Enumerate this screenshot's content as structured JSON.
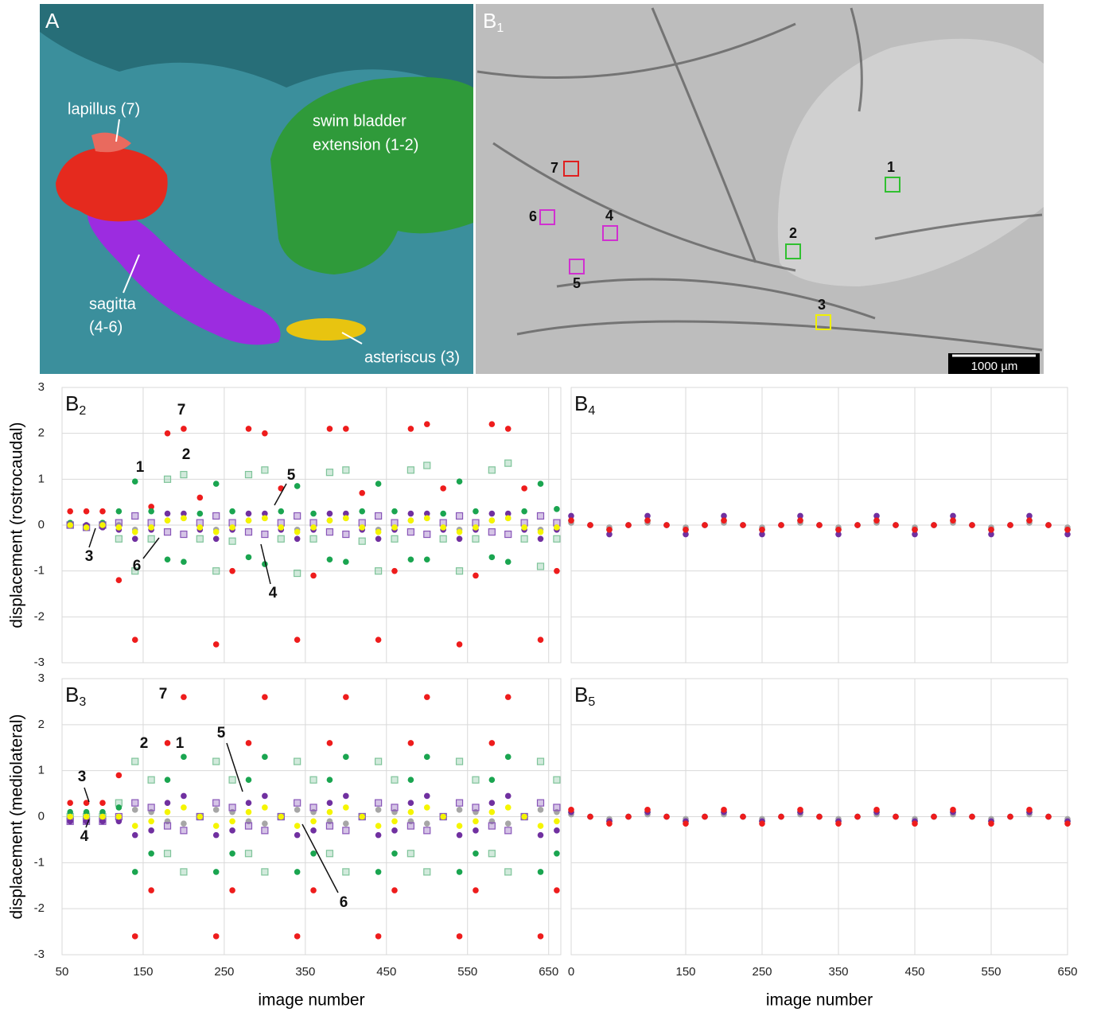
{
  "panel_a": {
    "label": "A",
    "annotations": [
      "lapillus (7)",
      "swim bladder",
      "extension (1-2)",
      "sagitta",
      "(4-6)",
      "asteriscus (3)"
    ]
  },
  "panel_b1": {
    "label": {
      "letter": "B",
      "sub": "1"
    },
    "markers": [
      "1",
      "2",
      "3",
      "4",
      "5",
      "6",
      "7"
    ],
    "scale_bar": "1000 µm"
  },
  "chart_data": [
    {
      "type": "scatter",
      "panel": {
        "letter": "B",
        "sub": "2"
      },
      "ylabel": "displacement (rostrocaudal)",
      "xlim": [
        50,
        665
      ],
      "xticks": [
        50,
        150,
        250,
        350,
        450,
        550,
        650
      ],
      "xtick_labels": false,
      "ylim": [
        -3,
        3
      ],
      "yticks": [
        -3,
        -2,
        -1,
        0,
        1,
        2,
        3
      ],
      "grid": true,
      "annotations": [
        "7",
        "1",
        "2",
        "5",
        "3",
        "6",
        "4"
      ],
      "x": [
        60,
        80,
        100,
        120,
        140,
        160,
        180,
        200,
        220,
        240,
        260,
        280,
        300,
        320,
        340,
        360,
        380,
        400,
        420,
        440,
        460,
        480,
        500,
        520,
        540,
        560,
        580,
        600,
        620,
        640,
        660
      ],
      "series": [
        {
          "name": "2",
          "color": "#7fc49a",
          "marker": "square",
          "values": [
            0,
            -0.05,
            0,
            -0.3,
            -1.0,
            -0.3,
            1.0,
            1.1,
            -0.3,
            -1.0,
            -0.35,
            1.1,
            1.2,
            -0.3,
            -1.05,
            -0.3,
            1.15,
            1.2,
            -0.35,
            -1.0,
            -0.3,
            1.2,
            1.3,
            -0.3,
            -1.0,
            -0.3,
            1.2,
            1.35,
            -0.3,
            -0.9,
            -0.3
          ]
        },
        {
          "name": "7",
          "color": "#ee1c1c",
          "marker": "circle",
          "values": [
            0.3,
            0.3,
            0.3,
            -1.2,
            -2.5,
            0.4,
            2.0,
            2.1,
            0.6,
            -2.6,
            -1.0,
            2.1,
            2.0,
            0.8,
            -2.5,
            -1.1,
            2.1,
            2.1,
            0.7,
            -2.5,
            -1.0,
            2.1,
            2.2,
            0.8,
            -2.6,
            -1.1,
            2.2,
            2.1,
            0.8,
            -2.5,
            -1.0
          ]
        },
        {
          "name": "1",
          "color": "#1aa550",
          "marker": "circle",
          "values": [
            0.05,
            0,
            0.05,
            0.3,
            0.95,
            0.3,
            -0.75,
            -0.8,
            0.25,
            0.9,
            0.3,
            -0.7,
            -0.85,
            0.3,
            0.85,
            0.25,
            -0.75,
            -0.8,
            0.3,
            0.9,
            0.3,
            -0.75,
            -0.75,
            0.25,
            0.95,
            0.3,
            -0.7,
            -0.8,
            0.3,
            0.9,
            0.35
          ]
        },
        {
          "name": "5",
          "color": "#a6a6a6",
          "marker": "circle",
          "values": [
            0,
            0,
            0,
            0,
            -0.1,
            -0.05,
            0.1,
            0.15,
            -0.05,
            -0.1,
            -0.05,
            0.1,
            0.15,
            -0.05,
            -0.1,
            -0.05,
            0.1,
            0.15,
            -0.05,
            -0.1,
            -0.05,
            0.1,
            0.15,
            -0.05,
            -0.1,
            -0.05,
            0.1,
            0.15,
            -0.05,
            -0.1,
            -0.05
          ]
        },
        {
          "name": "6",
          "color": "#8855b8",
          "marker": "square",
          "values": [
            0,
            -0.05,
            0,
            0.05,
            0.2,
            0.05,
            -0.15,
            -0.2,
            0.05,
            0.2,
            0.05,
            -0.15,
            -0.2,
            0.05,
            0.2,
            0.05,
            -0.15,
            -0.2,
            0.05,
            0.2,
            0.05,
            -0.15,
            -0.2,
            0.05,
            0.2,
            0.05,
            -0.15,
            -0.2,
            0.05,
            0.2,
            0.05
          ]
        },
        {
          "name": "4",
          "color": "#7030a0",
          "marker": "circle",
          "values": [
            0,
            0,
            -0.05,
            -0.1,
            -0.3,
            -0.1,
            0.25,
            0.25,
            -0.1,
            -0.3,
            -0.1,
            0.25,
            0.25,
            -0.1,
            -0.3,
            -0.1,
            0.25,
            0.25,
            -0.1,
            -0.3,
            -0.1,
            0.25,
            0.25,
            -0.1,
            -0.3,
            -0.1,
            0.25,
            0.25,
            -0.1,
            -0.3,
            -0.1
          ]
        },
        {
          "name": "3",
          "color": "#f5f500",
          "marker": "circle",
          "values": [
            0,
            -0.05,
            0,
            -0.05,
            -0.15,
            -0.05,
            0.1,
            0.15,
            -0.05,
            -0.15,
            -0.05,
            0.1,
            0.15,
            -0.05,
            -0.15,
            -0.05,
            0.1,
            0.15,
            -0.05,
            -0.15,
            -0.05,
            0.1,
            0.15,
            -0.05,
            -0.15,
            -0.05,
            0.1,
            0.15,
            -0.05,
            -0.15,
            -0.05
          ]
        }
      ]
    },
    {
      "type": "scatter",
      "panel": {
        "letter": "B",
        "sub": "3"
      },
      "ylabel": "displacement (mediolateral)",
      "xlabel": "image number",
      "xlim": [
        50,
        665
      ],
      "xticks": [
        50,
        150,
        250,
        350,
        450,
        550,
        650
      ],
      "ylim": [
        -3,
        3
      ],
      "yticks": [
        -3,
        -2,
        -1,
        0,
        1,
        2,
        3
      ],
      "grid": true,
      "annotations": [
        "7",
        "2",
        "1",
        "5",
        "3",
        "4",
        "6"
      ],
      "x": [
        60,
        80,
        100,
        120,
        140,
        160,
        180,
        200,
        220,
        240,
        260,
        280,
        300,
        320,
        340,
        360,
        380,
        400,
        420,
        440,
        460,
        480,
        500,
        520,
        540,
        560,
        580,
        600,
        620,
        640,
        660
      ],
      "series": [
        {
          "name": "2",
          "color": "#7fc49a",
          "marker": "square",
          "values": [
            0,
            0,
            0,
            0.3,
            1.2,
            0.8,
            -0.8,
            -1.2,
            0,
            1.2,
            0.8,
            -0.8,
            -1.2,
            0,
            1.2,
            0.8,
            -0.8,
            -1.2,
            0,
            1.2,
            0.8,
            -0.8,
            -1.2,
            0,
            1.2,
            0.8,
            -0.8,
            -1.2,
            0,
            1.2,
            0.8
          ]
        },
        {
          "name": "7",
          "color": "#ee1c1c",
          "marker": "circle",
          "values": [
            0.3,
            0.3,
            0.3,
            0.9,
            -2.6,
            -1.6,
            1.6,
            2.6,
            0,
            -2.6,
            -1.6,
            1.6,
            2.6,
            0,
            -2.6,
            -1.6,
            1.6,
            2.6,
            0,
            -2.6,
            -1.6,
            1.6,
            2.6,
            0,
            -2.6,
            -1.6,
            1.6,
            2.6,
            0,
            -2.6,
            -1.6
          ]
        },
        {
          "name": "1",
          "color": "#1aa550",
          "marker": "circle",
          "values": [
            0.1,
            0.1,
            0.1,
            0.2,
            -1.2,
            -0.8,
            0.8,
            1.3,
            0,
            -1.2,
            -0.8,
            0.8,
            1.3,
            0,
            -1.2,
            -0.8,
            0.8,
            1.3,
            0,
            -1.2,
            -0.8,
            0.8,
            1.3,
            0,
            -1.2,
            -0.8,
            0.8,
            1.3,
            0,
            -1.2,
            -0.8
          ]
        },
        {
          "name": "5",
          "color": "#a6a6a6",
          "marker": "circle",
          "values": [
            0,
            0,
            0,
            0,
            0.15,
            0.1,
            -0.1,
            -0.15,
            0,
            0.15,
            0.1,
            -0.1,
            -0.15,
            0,
            0.15,
            0.1,
            -0.1,
            -0.15,
            0,
            0.15,
            0.1,
            -0.1,
            -0.15,
            0,
            0.15,
            0.1,
            -0.1,
            -0.15,
            0,
            0.15,
            0.1
          ]
        },
        {
          "name": "6",
          "color": "#8855b8",
          "marker": "square",
          "values": [
            -0.1,
            -0.1,
            -0.1,
            0,
            0.3,
            0.2,
            -0.2,
            -0.3,
            0,
            0.3,
            0.2,
            -0.2,
            -0.3,
            0,
            0.3,
            0.2,
            -0.2,
            -0.3,
            0,
            0.3,
            0.2,
            -0.2,
            -0.3,
            0,
            0.3,
            0.2,
            -0.2,
            -0.3,
            0,
            0.3,
            0.2
          ]
        },
        {
          "name": "4",
          "color": "#7030a0",
          "marker": "circle",
          "values": [
            -0.1,
            -0.1,
            -0.1,
            -0.1,
            -0.4,
            -0.3,
            0.3,
            0.45,
            0,
            -0.4,
            -0.3,
            0.3,
            0.45,
            0,
            -0.4,
            -0.3,
            0.3,
            0.45,
            0,
            -0.4,
            -0.3,
            0.3,
            0.45,
            0,
            -0.4,
            -0.3,
            0.3,
            0.45,
            0,
            -0.4,
            -0.3
          ]
        },
        {
          "name": "3",
          "color": "#f5f500",
          "marker": "circle",
          "values": [
            0,
            0,
            0,
            0,
            -0.2,
            -0.1,
            0.1,
            0.2,
            0,
            -0.2,
            -0.1,
            0.1,
            0.2,
            0,
            -0.2,
            -0.1,
            0.1,
            0.2,
            0,
            -0.2,
            -0.1,
            0.1,
            0.2,
            0,
            -0.2,
            -0.1,
            0.1,
            0.2,
            0,
            -0.2,
            -0.1
          ]
        }
      ]
    },
    {
      "type": "scatter",
      "panel": {
        "letter": "B",
        "sub": "4"
      },
      "xlim": [
        0,
        650
      ],
      "xticks": [
        0,
        150,
        250,
        350,
        450,
        550,
        650
      ],
      "xtick_labels": false,
      "ylim": [
        -3,
        3
      ],
      "yticks": [
        -3,
        -2,
        -1,
        0,
        1,
        2,
        3
      ],
      "ytick_labels": false,
      "grid": true,
      "x": [
        0,
        25,
        50,
        75,
        100,
        125,
        150,
        175,
        200,
        225,
        250,
        275,
        300,
        325,
        350,
        375,
        400,
        425,
        450,
        475,
        500,
        525,
        550,
        575,
        600,
        625,
        650
      ],
      "series": [
        {
          "color": "#1aa550",
          "marker": "circle",
          "values": [
            0.1,
            0,
            -0.1,
            0,
            0.1,
            0,
            -0.1,
            0,
            0.1,
            0,
            -0.1,
            0,
            0.1,
            0,
            -0.1,
            0,
            0.1,
            0,
            -0.1,
            0,
            0.1,
            0,
            -0.1,
            0,
            0.1,
            0,
            -0.1
          ]
        },
        {
          "color": "#a6a6a6",
          "marker": "circle",
          "values": [
            0.05,
            0,
            -0.05,
            0,
            0.05,
            0,
            -0.05,
            0,
            0.05,
            0,
            -0.05,
            0,
            0.05,
            0,
            -0.05,
            0,
            0.05,
            0,
            -0.05,
            0,
            0.05,
            0,
            -0.05,
            0,
            0.05,
            0,
            -0.05
          ]
        },
        {
          "color": "#7030a0",
          "marker": "circle",
          "values": [
            0.2,
            0,
            -0.2,
            0,
            0.2,
            0,
            -0.2,
            0,
            0.2,
            0,
            -0.2,
            0,
            0.2,
            0,
            -0.2,
            0,
            0.2,
            0,
            -0.2,
            0,
            0.2,
            0,
            -0.2,
            0,
            0.2,
            0,
            -0.2
          ]
        },
        {
          "color": "#ee1c1c",
          "marker": "circle",
          "values": [
            0.1,
            0,
            -0.1,
            0,
            0.1,
            0,
            -0.1,
            0,
            0.1,
            0,
            -0.1,
            0,
            0.1,
            0,
            -0.1,
            0,
            0.1,
            0,
            -0.1,
            0,
            0.1,
            0,
            -0.1,
            0,
            0.1,
            0,
            -0.1
          ]
        }
      ]
    },
    {
      "type": "scatter",
      "panel": {
        "letter": "B",
        "sub": "5"
      },
      "xlabel": "image number",
      "xlim": [
        0,
        650
      ],
      "xticks": [
        0,
        150,
        250,
        350,
        450,
        550,
        650
      ],
      "ylim": [
        -3,
        3
      ],
      "yticks": [
        -3,
        -2,
        -1,
        0,
        1,
        2,
        3
      ],
      "ytick_labels": false,
      "grid": true,
      "x": [
        0,
        25,
        50,
        75,
        100,
        125,
        150,
        175,
        200,
        225,
        250,
        275,
        300,
        325,
        350,
        375,
        400,
        425,
        450,
        475,
        500,
        525,
        550,
        575,
        600,
        625,
        650
      ],
      "series": [
        {
          "color": "#1aa550",
          "marker": "circle",
          "values": [
            0.1,
            0,
            -0.1,
            0,
            0.1,
            0,
            -0.1,
            0,
            0.1,
            0,
            -0.1,
            0,
            0.1,
            0,
            -0.1,
            0,
            0.1,
            0,
            -0.1,
            0,
            0.1,
            0,
            -0.1,
            0,
            0.1,
            0,
            -0.1
          ]
        },
        {
          "color": "#a6a6a6",
          "marker": "circle",
          "values": [
            0.05,
            0,
            -0.05,
            0,
            0.05,
            0,
            -0.05,
            0,
            0.05,
            0,
            -0.05,
            0,
            0.05,
            0,
            -0.05,
            0,
            0.05,
            0,
            -0.05,
            0,
            0.05,
            0,
            -0.05,
            0,
            0.05,
            0,
            -0.05
          ]
        },
        {
          "color": "#7030a0",
          "marker": "circle",
          "values": [
            0.1,
            0,
            -0.1,
            0,
            0.1,
            0,
            -0.1,
            0,
            0.1,
            0,
            -0.1,
            0,
            0.1,
            0,
            -0.1,
            0,
            0.1,
            0,
            -0.1,
            0,
            0.1,
            0,
            -0.1,
            0,
            0.1,
            0,
            -0.1
          ]
        },
        {
          "color": "#ee1c1c",
          "marker": "circle",
          "values": [
            0.15,
            0,
            -0.15,
            0,
            0.15,
            0,
            -0.15,
            0,
            0.15,
            0,
            -0.15,
            0,
            0.15,
            0,
            -0.15,
            0,
            0.15,
            0,
            -0.15,
            0,
            0.15,
            0,
            -0.15,
            0,
            0.15,
            0,
            -0.15
          ]
        }
      ]
    }
  ]
}
